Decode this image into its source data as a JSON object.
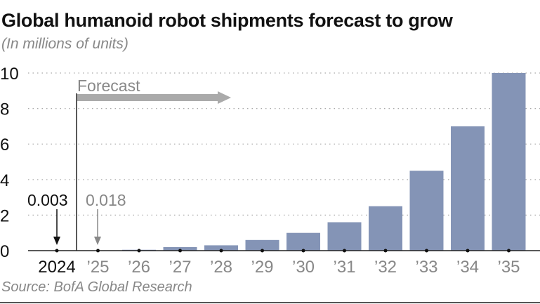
{
  "chart_data": {
    "type": "bar",
    "title": "Global humanoid robot shipments forecast to grow",
    "subtitle": "(In millions of units)",
    "source": "Source: BofA Global Research",
    "categories": [
      "2024",
      "’25",
      "’26",
      "’27",
      "’28",
      "’29",
      "’30",
      "’31",
      "’32",
      "’33",
      "’34",
      "’35"
    ],
    "values": [
      0.003,
      0.018,
      0.05,
      0.2,
      0.3,
      0.6,
      1.0,
      1.6,
      2.5,
      4.5,
      7.0,
      10.0
    ],
    "ylim": [
      0,
      10
    ],
    "yticks": [
      "0",
      "2",
      "4",
      "6",
      "8",
      "10"
    ],
    "grid": true,
    "bar_color": "#8494b6",
    "annotations": {
      "forecast_label": "Forecast",
      "label_2024": "0.003",
      "label_2025": "0.018"
    }
  }
}
